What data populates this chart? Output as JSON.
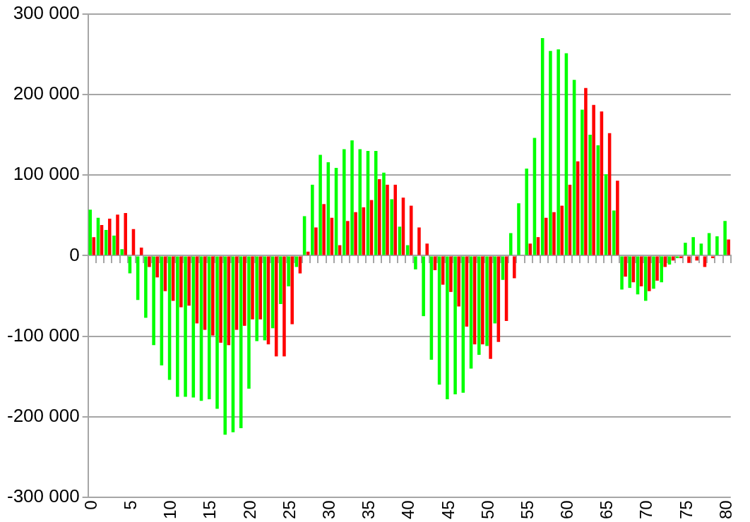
{
  "chart_data": {
    "type": "bar",
    "categories": [
      "0",
      null,
      null,
      null,
      null,
      "5",
      null,
      null,
      null,
      null,
      "10",
      null,
      null,
      null,
      null,
      "15",
      null,
      null,
      null,
      null,
      "20",
      null,
      null,
      null,
      null,
      "25",
      null,
      null,
      null,
      null,
      "30",
      null,
      null,
      null,
      null,
      "35",
      null,
      null,
      null,
      null,
      "40",
      null,
      null,
      null,
      null,
      "45",
      null,
      null,
      null,
      null,
      "50",
      null,
      null,
      null,
      null,
      "55",
      null,
      null,
      null,
      null,
      "60",
      null,
      null,
      null,
      null,
      "65",
      null,
      null,
      null,
      null,
      "70",
      null,
      null,
      null,
      null,
      "75",
      null,
      null,
      null,
      null,
      "80"
    ],
    "series": [
      {
        "color": "#00ff00",
        "values": [
          57000,
          47000,
          32000,
          25000,
          8000,
          -22000,
          -55000,
          -77000,
          -111000,
          -136000,
          -154000,
          -175000,
          -175000,
          -176000,
          -180000,
          -178000,
          -190000,
          -222000,
          -219000,
          -214000,
          -165000,
          -106000,
          -105000,
          -90000,
          -60000,
          -38000,
          -14000,
          49000,
          88000,
          125000,
          116000,
          109000,
          132000,
          143000,
          132000,
          130000,
          130000,
          103000,
          70000,
          36000,
          13000,
          -17000,
          -75000,
          -129000,
          -160000,
          -178000,
          -172000,
          -170000,
          -140000,
          -123000,
          -112000,
          -84000,
          -30000,
          28000,
          65000,
          108000,
          146000,
          270000,
          254000,
          256000,
          251000,
          218000,
          181000,
          150000,
          137000,
          101000,
          56000,
          -42000,
          -40000,
          -48000,
          -56000,
          -41000,
          -33000,
          -11000,
          -3000,
          16000,
          23000,
          15000,
          28000,
          24000,
          43000
        ]
      },
      {
        "color": "#ff0000",
        "values": [
          23000,
          38000,
          46000,
          51000,
          53000,
          33000,
          10000,
          -14000,
          -27000,
          -44000,
          -56000,
          -64000,
          -62000,
          -84000,
          -92000,
          -99000,
          -108000,
          -111000,
          -92000,
          -87000,
          -79000,
          -79000,
          -110000,
          -125000,
          -125000,
          -85000,
          -22000,
          5000,
          35000,
          64000,
          47000,
          13000,
          43000,
          54000,
          60000,
          69000,
          95000,
          88000,
          88000,
          72000,
          62000,
          35000,
          15000,
          -18000,
          -36000,
          -45000,
          -63000,
          -88000,
          -110000,
          -110000,
          -128000,
          -107000,
          -81000,
          -28000,
          0,
          15000,
          23000,
          47000,
          54000,
          62000,
          88000,
          117000,
          208000,
          187000,
          179000,
          152000,
          93000,
          -26000,
          -33000,
          -38000,
          -44000,
          -31000,
          -14000,
          -6000,
          -3000,
          -9000,
          -6000,
          -14000,
          -3000,
          0,
          20000
        ]
      }
    ],
    "ylim": [
      -300000,
      300000
    ],
    "yticks": [
      {
        "value": -300000,
        "label": "-300 000"
      },
      {
        "value": -200000,
        "label": "-200 000"
      },
      {
        "value": -100000,
        "label": "-100 000"
      },
      {
        "value": 0,
        "label": "0"
      },
      {
        "value": 100000,
        "label": "100 000"
      },
      {
        "value": 200000,
        "label": "200 000"
      },
      {
        "value": 300000,
        "label": "300 000"
      }
    ],
    "grid": "y",
    "legend": false
  }
}
